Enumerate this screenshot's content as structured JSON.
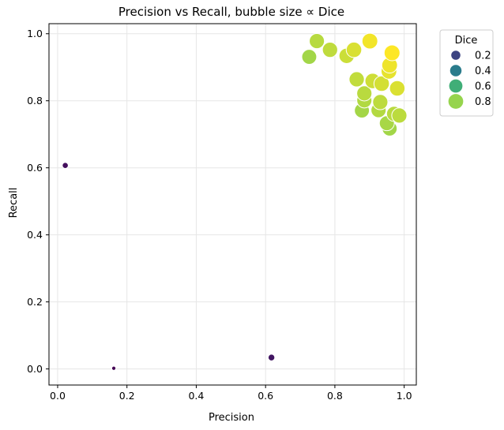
{
  "chart_data": {
    "type": "scatter",
    "title": "Precision vs Recall, bubble size ∝ Dice",
    "xlabel": "Precision",
    "ylabel": "Recall",
    "xlim": [
      -0.025,
      1.035
    ],
    "ylim": [
      -0.048,
      1.03
    ],
    "xticks": [
      0.0,
      0.2,
      0.4,
      0.6,
      0.8,
      1.0
    ],
    "xtick_labels": [
      "0.0",
      "0.2",
      "0.4",
      "0.6",
      "0.8",
      "1.0"
    ],
    "yticks": [
      0.0,
      0.2,
      0.4,
      0.6,
      0.8,
      1.0
    ],
    "ytick_labels": [
      "0.0",
      "0.2",
      "0.4",
      "0.6",
      "0.8",
      "1.0"
    ],
    "grid": true,
    "colormap": "viridis",
    "legend": {
      "title": "Dice",
      "placement": "outside upper right",
      "entries": [
        {
          "label": "0.2",
          "dice": 0.2
        },
        {
          "label": "0.4",
          "dice": 0.4
        },
        {
          "label": "0.6",
          "dice": 0.6
        },
        {
          "label": "0.8",
          "dice": 0.8
        }
      ]
    },
    "points": [
      {
        "x": 0.022,
        "y": 0.607,
        "dice": 0.04
      },
      {
        "x": 0.162,
        "y": 0.002,
        "dice": 0.003
      },
      {
        "x": 0.617,
        "y": 0.034,
        "dice": 0.065
      },
      {
        "x": 0.748,
        "y": 0.978,
        "dice": 0.85
      },
      {
        "x": 0.901,
        "y": 0.978,
        "dice": 0.937
      },
      {
        "x": 0.786,
        "y": 0.952,
        "dice": 0.862
      },
      {
        "x": 0.855,
        "y": 0.952,
        "dice": 0.9
      },
      {
        "x": 0.965,
        "y": 0.943,
        "dice": 0.954
      },
      {
        "x": 0.726,
        "y": 0.931,
        "dice": 0.818
      },
      {
        "x": 0.834,
        "y": 0.934,
        "dice": 0.879
      },
      {
        "x": 0.958,
        "y": 0.906,
        "dice": 0.931
      },
      {
        "x": 0.956,
        "y": 0.888,
        "dice": 0.92
      },
      {
        "x": 0.863,
        "y": 0.864,
        "dice": 0.864
      },
      {
        "x": 0.909,
        "y": 0.859,
        "dice": 0.883
      },
      {
        "x": 0.935,
        "y": 0.851,
        "dice": 0.891
      },
      {
        "x": 0.98,
        "y": 0.837,
        "dice": 0.902
      },
      {
        "x": 0.885,
        "y": 0.822,
        "dice": 0.853
      },
      {
        "x": 0.885,
        "y": 0.801,
        "dice": 0.841
      },
      {
        "x": 0.931,
        "y": 0.796,
        "dice": 0.858
      },
      {
        "x": 0.878,
        "y": 0.771,
        "dice": 0.821
      },
      {
        "x": 0.926,
        "y": 0.772,
        "dice": 0.843
      },
      {
        "x": 0.971,
        "y": 0.761,
        "dice": 0.853
      },
      {
        "x": 0.986,
        "y": 0.756,
        "dice": 0.855
      },
      {
        "x": 0.95,
        "y": 0.733,
        "dice": 0.827
      },
      {
        "x": 0.958,
        "y": 0.717,
        "dice": 0.818
      }
    ]
  }
}
